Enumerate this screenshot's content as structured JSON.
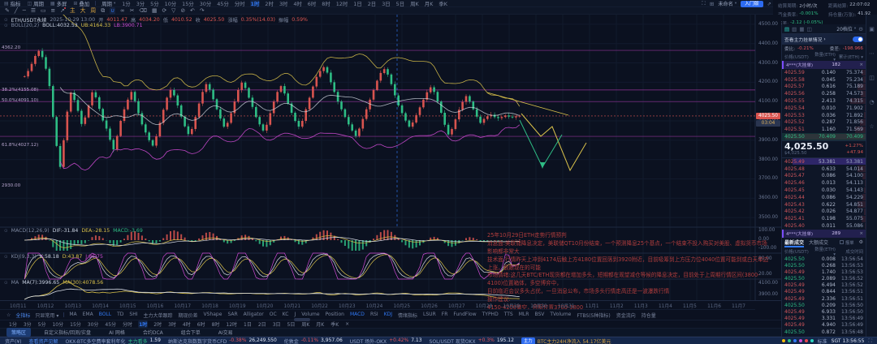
{
  "topbar": {
    "menus": [
      {
        "icon": "▤",
        "label": "指标"
      },
      {
        "icon": "◫",
        "label": "周期"
      },
      {
        "icon": "▦",
        "label": "多屏"
      },
      {
        "icon": "⊞",
        "label": "叠加"
      }
    ],
    "period_dropdown": "周期",
    "timeframes": [
      "1分",
      "3分",
      "5分",
      "10分",
      "15分",
      "30分",
      "45分",
      "分时",
      "1时",
      "2时",
      "3时",
      "4时",
      "6时",
      "8时",
      "12时",
      "1日",
      "2日",
      "3日",
      "5日",
      "周K",
      "月K",
      "季K"
    ],
    "active_timeframe": "1时",
    "layout_name": "未命名",
    "plan": "入门版"
  },
  "drawbar": {
    "tools": [
      {
        "g": "✎",
        "name": "pencil-tool-icon"
      },
      {
        "g": "╱",
        "name": "trendline-tool-icon"
      },
      {
        "g": "─",
        "name": "horizontal-line-tool-icon"
      },
      {
        "g": "☰",
        "name": "channel-tool-icon"
      },
      {
        "g": "▭",
        "name": "rectangle-tool-icon"
      },
      {
        "g": "≡",
        "name": "fibonacci-tool-icon"
      },
      {
        "g": "↗",
        "name": "arrow-tool-icon",
        "dot": true
      },
      {
        "g": "主",
        "name": "text-main-button",
        "c": "cy"
      },
      {
        "g": "大",
        "name": "text-large-button",
        "c": "cy"
      },
      {
        "g": "周",
        "name": "text-period-button",
        "c": "cy"
      },
      {
        "g": "⧉",
        "name": "copy-tool-icon"
      },
      {
        "g": "∪",
        "name": "magnet-tool-icon",
        "c": "cb"
      },
      {
        "g": "∞",
        "name": "link-tool-icon"
      },
      {
        "g": "✂",
        "name": "scissors-tool-icon"
      },
      {
        "g": "⌫",
        "name": "eraser-tool-icon"
      },
      {
        "g": "▦",
        "name": "grid-tool-icon"
      },
      {
        "g": "⟳",
        "name": "sync-tool-icon"
      },
      {
        "g": "▽",
        "name": "filter-tool-icon"
      },
      {
        "g": "⊘",
        "name": "lock-tool-icon"
      },
      {
        "g": "↶",
        "name": "undo-tool-icon"
      },
      {
        "g": "↷",
        "name": "redo-tool-icon"
      }
    ]
  },
  "funding": {
    "rows": [
      {
        "l": "结算周期:",
        "v": "2小时/次",
        "c": ""
      },
      {
        "l": "距离结算:",
        "v": "22:07:02",
        "c": ""
      },
      {
        "l": "资金费率:",
        "v": "-0.001%",
        "c": "g"
      },
      {
        "l": "持仓量(万张):",
        "v": "41.92",
        "c": ""
      },
      {
        "l": "基差:",
        "v": "-2.12 (-0.05%)",
        "c": "g"
      }
    ]
  },
  "chart": {
    "l1": {
      "sym": "ETH/USDT永续",
      "time": "2025-10-29 13:00",
      "o_l": "开",
      "o": "4011.47",
      "h_l": "高",
      "h": "4034.20",
      "lo_l": "低",
      "lo": "4010.52",
      "c_l": "收",
      "c": "4025.50",
      "chg_l": "涨幅",
      "chg": "0.35%(14.03)",
      "amp_l": "振幅",
      "amp": "0.59%"
    },
    "boll": {
      "name": "BOLL(20,2)",
      "mid": "BOLL:4032.53",
      "ub": "UB:4164.33",
      "lb": "LB:3900.71"
    },
    "macd": {
      "name": "MACD(12,26,9)",
      "dif": "DIF:-31.84",
      "dea": "DEA:-28.15",
      "macd": "MACD:-3.69"
    },
    "kdj": {
      "name": "KDJ(9,3,3)",
      "k": "K:58.18",
      "d": "D:43.87",
      "j": "J:96.75"
    },
    "ma": {
      "name": "MA",
      "ma7": "MA(7):3996.65",
      "ma30": "MA(30):4078.56"
    },
    "axis": {
      "max": 4550,
      "min": 3450,
      "labels": [
        "4500.00",
        "4400.00",
        "4300.00",
        "4200.00",
        "4100.00",
        "4000.00",
        "3900.00",
        "3800.00",
        "3700.00",
        "3600.00",
        "3500.00"
      ]
    },
    "sub_axis": [
      {
        "t": "100.00",
        "y": 281
      },
      {
        "t": "0.00",
        "y": 292
      },
      {
        "t": "-100.00",
        "y": 303
      },
      {
        "t": "80.00",
        "y": 316
      },
      {
        "t": "20.00",
        "y": 335
      },
      {
        "t": "4100.00",
        "y": 346
      },
      {
        "t": "3900.00",
        "y": 360
      }
    ],
    "left_labels": [
      {
        "t": "4362.20",
        "y": 56
      },
      {
        "t": "38.2%(4155.08)",
        "y": 108
      },
      {
        "t": "50.0%(4091.10)",
        "y": 121
      },
      {
        "t": "61.8%(4027.12)",
        "y": 176
      },
      {
        "t": "2930.00",
        "y": 226
      }
    ],
    "price_tag": "4025.50",
    "countdown_tag": "03:04",
    "hlines": [
      4365,
      4160,
      4100,
      3920
    ],
    "vline_x": 489,
    "dates": [
      "10月11",
      "10月12",
      "10月13",
      "10月14",
      "10月15",
      "10月16",
      "10月17",
      "10月18",
      "10月19",
      "10月20",
      "10月21",
      "10月22",
      "10月23",
      "10月24",
      "10月25",
      "10月26",
      "10月27",
      "10月28",
      "10月29",
      "10月30",
      "10月31",
      "11月1",
      "11月2",
      "11月3",
      "11月4",
      "11月5",
      "11月6",
      "11月7"
    ],
    "annotation": {
      "lines": [
        "25年10月29日ETH走势行情预判",
        "消息面:美联储降息决定，美联储QT10月份结束，一个预测降息25个基点，一个结束不投入购买对美股、虚拟货币市场影响都非常大",
        "技术面:行情昨天上冲到4174后触上方4180位置回落到3920附近，目前吸筹到上方压力位4040位置可能到或白天单边上涨，很跟现在的可能",
        "市场情绪:这几天BTC/ETH现货都在增加多头，短期都在观望减仓等候的降息决定，目前处于上周期行情区间(3800-4100)位置箱体，多空博弈中，",
        "目前临近会议多头占优，一旦消息公布，市场多头行情走高还是一波瀑跌行情",
        "操作建议:",
        "4150-4200做空，目标位置3700-3800"
      ]
    },
    "series": [
      4230,
      4258,
      4295,
      4336,
      4362,
      4330,
      4270,
      4180,
      4020,
      3870,
      3762,
      3900,
      4048,
      4146,
      4108,
      4052,
      3984,
      4018,
      4080,
      4148,
      4122,
      4062,
      4002,
      3960,
      3902,
      3852,
      3922,
      4000,
      4060,
      4110,
      4150,
      4102,
      4040,
      3982,
      3940,
      3900,
      3872,
      3920,
      3990,
      4058,
      4120,
      4160,
      4132,
      4080,
      4022,
      3972,
      3932,
      3958,
      4020,
      4090,
      4150,
      4190,
      4162,
      4112,
      4060,
      4012,
      3970,
      3990,
      4040,
      4100,
      4160,
      4198,
      4170,
      4120,
      4072,
      4020,
      3982,
      3950,
      3980,
      4040,
      4100,
      4150,
      4180,
      4142,
      4090,
      4042,
      4000,
      3970,
      4000,
      4060,
      4120,
      4178,
      4228,
      4258,
      4278,
      4250,
      4200,
      4150,
      4100,
      4060,
      4020,
      3982,
      3950,
      3922,
      3960,
      4010,
      4060,
      4110,
      4160,
      4208,
      4248,
      4268,
      4240,
      4190,
      4132,
      4080,
      4040,
      4002,
      3970,
      3992,
      4030,
      4070,
      4110,
      4148,
      4174,
      4150,
      4100,
      4042,
      3980,
      3930,
      3958,
      4008,
      4058,
      4098,
      4128,
      4100,
      4060,
      4022,
      3990,
      4010,
      4024,
      4032,
      4020,
      4014,
      4020,
      4028,
      4022,
      4018,
      4024,
      4025.5
    ]
  },
  "orderbook": {
    "levels_dropdown": "20档位",
    "banner": "查看主力挂单情况",
    "weibi_label": "委比:",
    "weibi": "-0.21%",
    "weicha_label": "委差:",
    "weicha": "-198.966",
    "headers": [
      "价格(USDT)",
      "数量(ETH) ▾",
      "累计(ETH) ▾"
    ],
    "strip_top": {
      "label": "4***(大挂单)",
      "count": "182",
      "close": "×"
    },
    "strip_bottom": {
      "label": "4***(大挂单)",
      "count": "289",
      "close": "×"
    },
    "asks": [
      {
        "p": "4025.59",
        "q": "0.140",
        "c": "75.374"
      },
      {
        "p": "4025.58",
        "q": "0.045",
        "c": "75.234"
      },
      {
        "p": "4025.57",
        "q": "0.616",
        "c": "75.189"
      },
      {
        "p": "4025.56",
        "q": "0.258",
        "c": "74.573"
      },
      {
        "p": "4025.55",
        "q": "2.413",
        "c": "74.315"
      },
      {
        "p": "4025.54",
        "q": "0.010",
        "c": "71.902"
      },
      {
        "p": "4025.53",
        "q": "0.036",
        "c": "71.892"
      },
      {
        "p": "4025.52",
        "q": "0.287",
        "c": "71.856"
      },
      {
        "p": "4025.51",
        "q": "1.160",
        "c": "71.569"
      },
      {
        "p": "4025.50",
        "q": "70.409",
        "c": "70.409",
        "hl": "g"
      }
    ],
    "bids": [
      {
        "p": "4025.49",
        "q": "53.381",
        "c": "53.381",
        "hl": "p"
      },
      {
        "p": "4025.48",
        "q": "0.633",
        "c": "54.014"
      },
      {
        "p": "4025.47",
        "q": "0.086",
        "c": "54.100"
      },
      {
        "p": "4025.46",
        "q": "0.013",
        "c": "54.113"
      },
      {
        "p": "4025.45",
        "q": "0.030",
        "c": "54.143"
      },
      {
        "p": "4025.44",
        "q": "0.086",
        "c": "54.229"
      },
      {
        "p": "4025.43",
        "q": "0.622",
        "c": "54.851"
      },
      {
        "p": "4025.42",
        "q": "0.026",
        "c": "54.877"
      },
      {
        "p": "4025.41",
        "q": "0.198",
        "c": "55.075"
      },
      {
        "p": "4025.40",
        "q": "0.011",
        "c": "55.086"
      }
    ],
    "last_price": "4,025.50",
    "last_price_usd": "$4,025.50",
    "change_pct": "+1.27%",
    "change_val": "+47.94"
  },
  "trades": {
    "tab1": "最新成交",
    "tab2": "大额成交",
    "checkbox": "报单",
    "headers": [
      "价格(USDT)",
      "数量(ETH) ▾",
      "成交时间"
    ],
    "rows": [
      {
        "p": "4025.50",
        "q": "0.008",
        "t": "13:56:54",
        "s": "b"
      },
      {
        "p": "4025.50",
        "q": "0.268",
        "t": "13:56:53",
        "s": "b"
      },
      {
        "p": "4025.49",
        "q": "1.740",
        "t": "13:56:53",
        "s": "s"
      },
      {
        "p": "4025.50",
        "q": "2.089",
        "t": "13:56:52",
        "s": "b"
      },
      {
        "p": "4025.49",
        "q": "6.494",
        "t": "13:56:52",
        "s": "s"
      },
      {
        "p": "4025.49",
        "q": "0.844",
        "t": "13:56:51",
        "s": "s"
      },
      {
        "p": "4025.49",
        "q": "2.336",
        "t": "13:56:51",
        "s": "s"
      },
      {
        "p": "4025.50",
        "q": "0.209",
        "t": "13:56:50",
        "s": "b"
      },
      {
        "p": "4025.49",
        "q": "6.933",
        "t": "13:56:50",
        "s": "s"
      },
      {
        "p": "4025.49",
        "q": "3.331",
        "t": "13:56:49",
        "s": "s"
      },
      {
        "p": "4025.49",
        "q": "4.940",
        "t": "13:56:49",
        "s": "s"
      },
      {
        "p": "4025.50",
        "q": "0.872",
        "t": "13:56:48",
        "s": "b"
      }
    ]
  },
  "indbar": {
    "star": "☆",
    "all": "全指标",
    "preset": "只显常用 ▾",
    "items": [
      "MA",
      "EMA",
      "BOLL",
      "TD",
      "SHI",
      "主力大单跟踪",
      "期现价差",
      "VShape",
      "SAR",
      "Alligator",
      "OC",
      "KC",
      "J",
      "Volume",
      "Position",
      "MACD",
      "RSI",
      "KDJ",
      "情绪指标",
      "LSUR",
      "FR",
      "FundFlow",
      "TYPHD",
      "TTS",
      "MLR",
      "BSV",
      "TVolume",
      "FTBS(5种指标)",
      "资金流向",
      "持仓量"
    ],
    "active": [
      "BOLL",
      "MACD",
      "KDJ"
    ]
  },
  "bottom_timeframe_close": "×",
  "strategy_tabs": [
    "策略区",
    "自定义指标/回测/实盘",
    "AI 网格",
    "合约DCA",
    "组合下单",
    "AI交易"
  ],
  "statusbar": {
    "items": [
      {
        "label": "资产(¥)"
      },
      {
        "link": "查看资产见解"
      },
      {
        "label": "OKX-BTC多空费率套利年化",
        "grn": "主力看多",
        "val": "1.59"
      },
      {
        "label": "纳斯达克指数数字货币CFD",
        "red": "-0.38%",
        "val": "26,249.550"
      },
      {
        "label": "伦敦金",
        "red": "-0.11%",
        "val": "3,957.06"
      },
      {
        "label": "USDT 场外-OKX",
        "red": "+0.42%",
        "val": "7.13"
      },
      {
        "label": "SOL/USDT 现货OKX",
        "red": "+0.3%",
        "val": "195.12"
      },
      {
        "badge": "主力",
        "org": "BTC主力24H净流入 54.17亿美元"
      }
    ],
    "mode": "标准",
    "clock": "SGT 13:56:55",
    "dot_colors": [
      "#f0b90b",
      "#2ebd85",
      "#3179f5",
      "#cf4bd4",
      "#e8474e",
      "#2dd4bf"
    ]
  },
  "colors": {
    "up": "#d9544f",
    "down": "#2ebd85",
    "accent": "#3179f5",
    "magenta": "#c13ac1",
    "yellow": "#d9c14a"
  }
}
